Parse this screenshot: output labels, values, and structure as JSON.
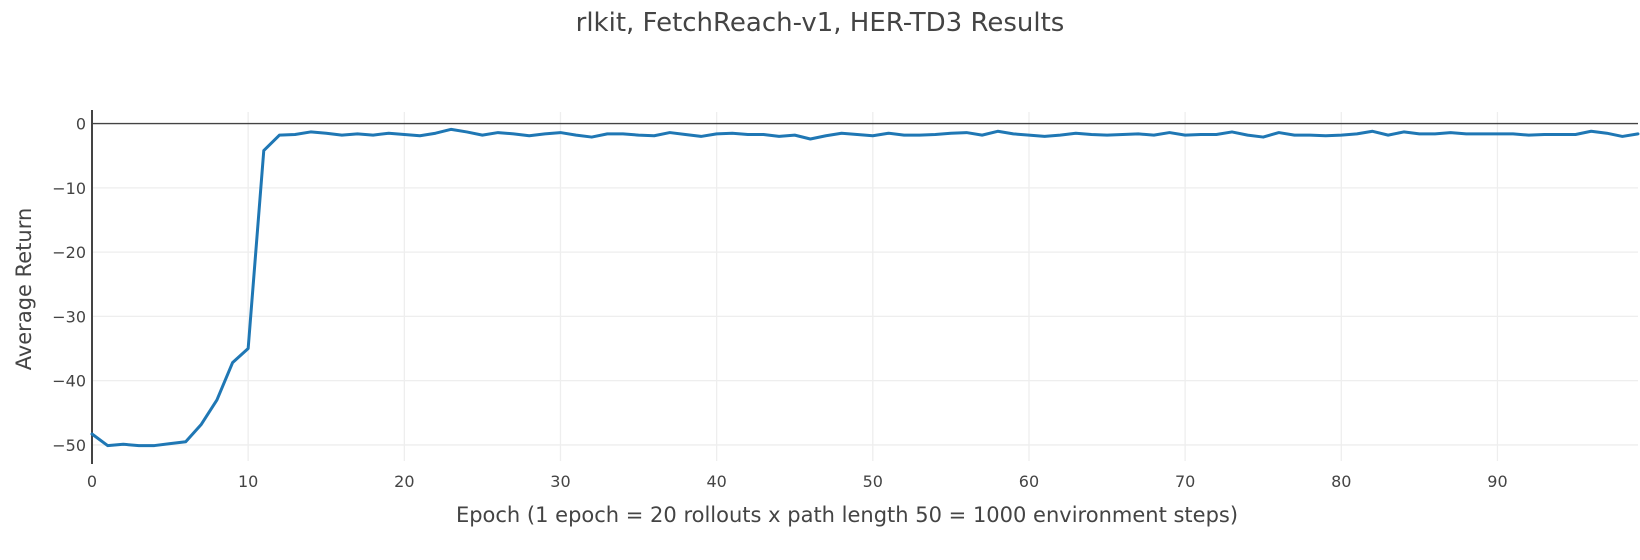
{
  "chart_data": {
    "type": "line",
    "title": "rlkit, FetchReach-v1, HER-TD3 Results",
    "xlabel": "Epoch (1 epoch = 20 rollouts x path length 50 = 1000 environment steps)",
    "ylabel": "Average Return",
    "xlim": [
      0,
      99
    ],
    "ylim": [
      -52.5,
      1.8
    ],
    "x_ticks": [
      0,
      10,
      20,
      30,
      40,
      50,
      60,
      70,
      80,
      90
    ],
    "y_ticks": [
      0,
      -10,
      -20,
      -30,
      -40,
      -50
    ],
    "x_tick_labels": [
      "0",
      "10",
      "20",
      "30",
      "40",
      "50",
      "60",
      "70",
      "80",
      "90"
    ],
    "y_tick_labels": [
      "0",
      "−10",
      "−20",
      "−30",
      "−40",
      "−50"
    ],
    "grid": true,
    "series": [
      {
        "color": "#1f77b4",
        "x": [
          0,
          1,
          2,
          3,
          4,
          5,
          6,
          7,
          8,
          9,
          10,
          11,
          12,
          13,
          14,
          15,
          16,
          17,
          18,
          19,
          20,
          21,
          22,
          23,
          24,
          25,
          26,
          27,
          28,
          29,
          30,
          31,
          32,
          33,
          34,
          35,
          36,
          37,
          38,
          39,
          40,
          41,
          42,
          43,
          44,
          45,
          46,
          47,
          48,
          49,
          50,
          51,
          52,
          53,
          54,
          55,
          56,
          57,
          58,
          59,
          60,
          61,
          62,
          63,
          64,
          65,
          66,
          67,
          68,
          69,
          70,
          71,
          72,
          73,
          74,
          75,
          76,
          77,
          78,
          79,
          80,
          81,
          82,
          83,
          84,
          85,
          86,
          87,
          88,
          89,
          90,
          91,
          92,
          93,
          94,
          95,
          96,
          97,
          98,
          99
        ],
        "y": [
          -48.3,
          -50.1,
          -49.9,
          -50.1,
          -50.1,
          -49.8,
          -49.5,
          -46.8,
          -43.0,
          -37.2,
          -35.0,
          -4.2,
          -1.8,
          -1.7,
          -1.3,
          -1.5,
          -1.8,
          -1.6,
          -1.8,
          -1.5,
          -1.7,
          -1.9,
          -1.5,
          -0.9,
          -1.3,
          -1.8,
          -1.4,
          -1.6,
          -1.9,
          -1.6,
          -1.4,
          -1.8,
          -2.1,
          -1.6,
          -1.6,
          -1.8,
          -1.9,
          -1.4,
          -1.7,
          -2.0,
          -1.6,
          -1.5,
          -1.7,
          -1.7,
          -2.0,
          -1.8,
          -2.4,
          -1.9,
          -1.5,
          -1.7,
          -1.9,
          -1.5,
          -1.8,
          -1.8,
          -1.7,
          -1.5,
          -1.4,
          -1.8,
          -1.2,
          -1.6,
          -1.8,
          -2.0,
          -1.8,
          -1.5,
          -1.7,
          -1.8,
          -1.7,
          -1.6,
          -1.8,
          -1.4,
          -1.8,
          -1.7,
          -1.7,
          -1.3,
          -1.8,
          -2.1,
          -1.4,
          -1.8,
          -1.8,
          -1.9,
          -1.8,
          -1.6,
          -1.2,
          -1.8,
          -1.3,
          -1.6,
          -1.6,
          -1.4,
          -1.6,
          -1.6,
          -1.6,
          -1.6,
          -1.8,
          -1.7,
          -1.7,
          -1.7,
          -1.2,
          -1.5,
          -2.0,
          -1.6
        ]
      }
    ]
  }
}
